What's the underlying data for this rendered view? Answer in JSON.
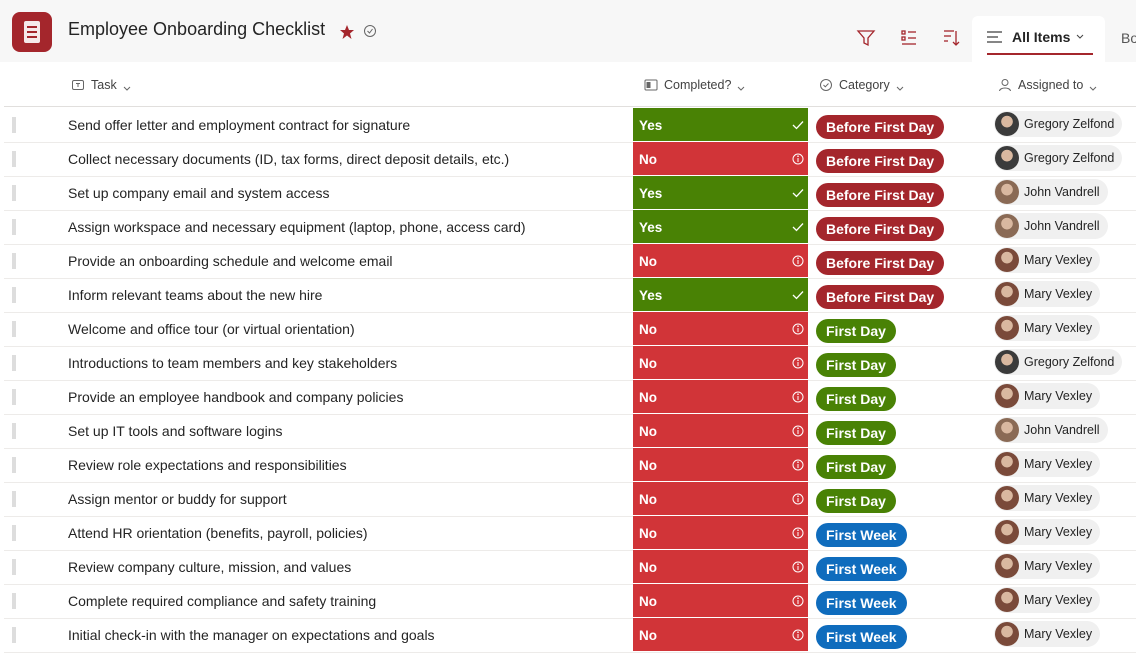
{
  "header": {
    "title": "Employee Onboarding Checklist",
    "view": "All Items",
    "next_view": "Bo"
  },
  "columns": [
    "Task",
    "Completed?",
    "Category",
    "Assigned to"
  ],
  "completed_styles": [
    {
      "label": "Yes",
      "color": "#498205"
    },
    {
      "label": "No",
      "color": "#d13438"
    }
  ],
  "category_styles": [
    {
      "label": "Before First Day",
      "color": "#a4262c"
    },
    {
      "label": "First Day",
      "color": "#498205"
    },
    {
      "label": "First Week",
      "color": "#0f6cbd"
    }
  ],
  "rows": [
    {
      "task": "Send offer letter and employment contract for signature",
      "completed": "Yes",
      "category": "Before First Day",
      "assigned": "Gregory Zelfond"
    },
    {
      "task": "Collect necessary documents (ID, tax forms, direct deposit details, etc.)",
      "completed": "No",
      "category": "Before First Day",
      "assigned": "Gregory Zelfond"
    },
    {
      "task": "Set up company email and system access",
      "completed": "Yes",
      "category": "Before First Day",
      "assigned": "John Vandrell"
    },
    {
      "task": "Assign workspace and necessary equipment (laptop, phone, access card)",
      "completed": "Yes",
      "category": "Before First Day",
      "assigned": "John Vandrell"
    },
    {
      "task": "Provide an onboarding schedule and welcome email",
      "completed": "No",
      "category": "Before First Day",
      "assigned": "Mary Vexley"
    },
    {
      "task": "Inform relevant teams about the new hire",
      "completed": "Yes",
      "category": "Before First Day",
      "assigned": "Mary Vexley"
    },
    {
      "task": "Welcome and office tour (or virtual orientation)",
      "completed": "No",
      "category": "First Day",
      "assigned": "Mary Vexley"
    },
    {
      "task": "Introductions to team members and key stakeholders",
      "completed": "No",
      "category": "First Day",
      "assigned": "Gregory Zelfond"
    },
    {
      "task": "Provide an employee handbook and company policies",
      "completed": "No",
      "category": "First Day",
      "assigned": "Mary Vexley"
    },
    {
      "task": "Set up IT tools and software logins",
      "completed": "No",
      "category": "First Day",
      "assigned": "John Vandrell"
    },
    {
      "task": "Review role expectations and responsibilities",
      "completed": "No",
      "category": "First Day",
      "assigned": "Mary Vexley"
    },
    {
      "task": "Assign mentor or buddy for support",
      "completed": "No",
      "category": "First Day",
      "assigned": "Mary Vexley"
    },
    {
      "task": "Attend HR orientation (benefits, payroll, policies)",
      "completed": "No",
      "category": "First Week",
      "assigned": "Mary Vexley"
    },
    {
      "task": "Review company culture, mission, and values",
      "completed": "No",
      "category": "First Week",
      "assigned": "Mary Vexley"
    },
    {
      "task": "Complete required compliance and safety training",
      "completed": "No",
      "category": "First Week",
      "assigned": "Mary Vexley"
    },
    {
      "task": "Initial check-in with the manager on expectations and goals",
      "completed": "No",
      "category": "First Week",
      "assigned": "Mary Vexley"
    }
  ]
}
